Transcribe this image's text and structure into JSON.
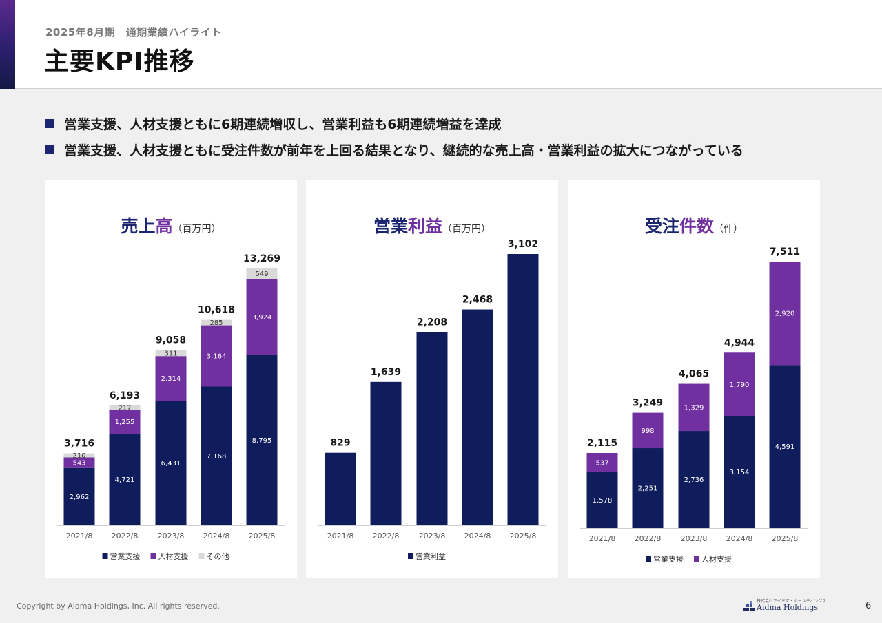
{
  "header": {
    "subtitle": "2025年8月期　通期業績ハイライト",
    "title": "主要KPI推移"
  },
  "bullets": [
    "営業支援、人材支援ともに6期連続増収し、営業利益も6期連続増益を達成",
    "営業支援、人材支援ともに受注件数が前年を上回る結果となり、継続的な売上高・営業利益の拡大につながっている"
  ],
  "colors": {
    "navy": "#0f1d5c",
    "purple": "#7030a0",
    "gray": "#d9d9d9",
    "title_navy": "#1b2570",
    "title_purple": "#7030a0"
  },
  "chart_data": [
    {
      "type": "bar",
      "stacked": true,
      "title_part1": "売上",
      "title_part2": "高",
      "unit": "（百万円）",
      "categories": [
        "2021/8",
        "2022/8",
        "2023/8",
        "2024/8",
        "2025/8"
      ],
      "series": [
        {
          "name": "営業支援",
          "values": [
            2962,
            4721,
            6431,
            7168,
            8795
          ]
        },
        {
          "name": "人材支援",
          "values": [
            543,
            1255,
            2314,
            3164,
            3924
          ]
        },
        {
          "name": "その他",
          "values": [
            210,
            217,
            311,
            285,
            549
          ]
        }
      ],
      "totals": [
        3716,
        6193,
        9058,
        10618,
        13269
      ],
      "ylim": [
        0,
        13269
      ]
    },
    {
      "type": "bar",
      "stacked": true,
      "title_part1": "営業",
      "title_part2": "利益",
      "unit": "（百万円）",
      "categories": [
        "2021/8",
        "2022/8",
        "2023/8",
        "2024/8",
        "2025/8"
      ],
      "series": [
        {
          "name": "営業利益",
          "values": [
            829,
            1639,
            2208,
            2468,
            3102
          ]
        }
      ],
      "totals": [
        829,
        1639,
        2208,
        2468,
        3102
      ],
      "ylim": [
        0,
        3102
      ]
    },
    {
      "type": "bar",
      "stacked": true,
      "title_part1": "受注",
      "title_part2": "件数",
      "unit": "（件）",
      "categories": [
        "2021/8",
        "2022/8",
        "2023/8",
        "2024/8",
        "2025/8"
      ],
      "series": [
        {
          "name": "営業支援",
          "values": [
            1578,
            2251,
            2736,
            3154,
            4591
          ]
        },
        {
          "name": "人材支援",
          "values": [
            537,
            998,
            1329,
            1790,
            2920
          ]
        }
      ],
      "totals": [
        2115,
        3249,
        4065,
        4944,
        7511
      ],
      "ylim": [
        0,
        7511
      ]
    }
  ],
  "footer": {
    "copyright": "Copyright by Aidma Holdings, Inc. All rights reserved.",
    "logo_small": "株式会社アイドマ・ホールディングス",
    "logo_main": "Aidma Holdings",
    "page": "6"
  }
}
